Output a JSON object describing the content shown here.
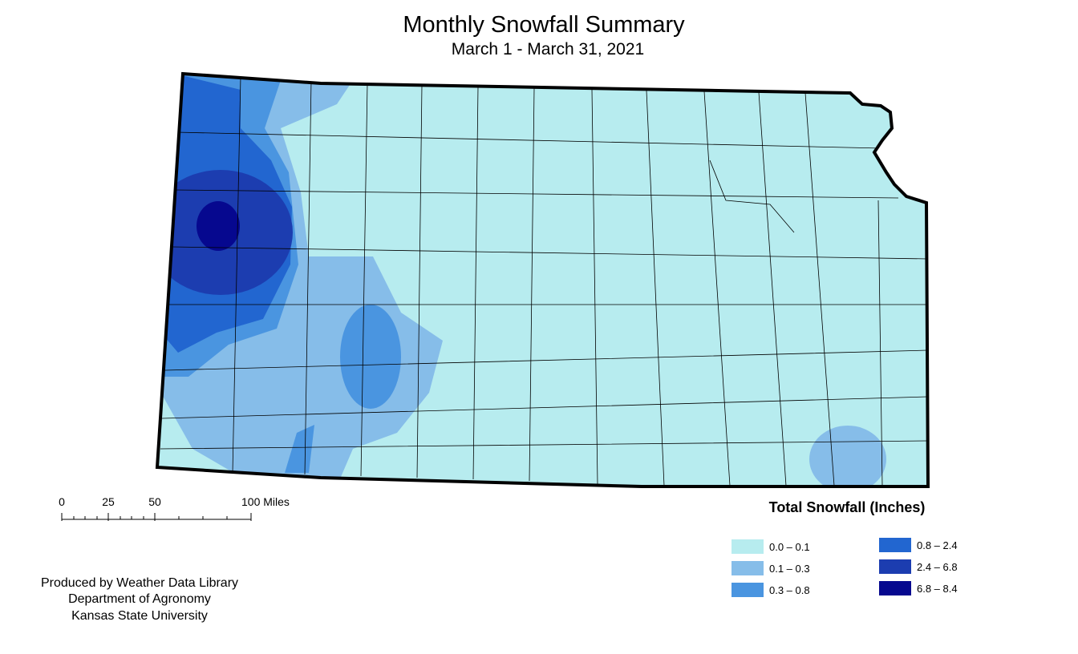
{
  "header": {
    "title": "Monthly Snowfall Summary",
    "subtitle": "March 1 - March 31, 2021"
  },
  "scale_bar": {
    "labels": [
      "0",
      "25",
      "50",
      "100 Miles"
    ]
  },
  "legend": {
    "title": "Total Snowfall (Inches)",
    "items": [
      {
        "label": "0.0 – 0.1",
        "color": "#b7ecef"
      },
      {
        "label": "0.1 – 0.3",
        "color": "#86bde9"
      },
      {
        "label": "0.3 – 0.8",
        "color": "#4a95e0"
      },
      {
        "label": "0.8 – 2.4",
        "color": "#2266d0"
      },
      {
        "label": "2.4 – 6.8",
        "color": "#1c3db0"
      },
      {
        "label": "6.8 – 8.4",
        "color": "#06088f"
      }
    ]
  },
  "credits": [
    "Produced by Weather Data Library",
    "Department of Agronomy",
    "Kansas State University"
  ]
}
